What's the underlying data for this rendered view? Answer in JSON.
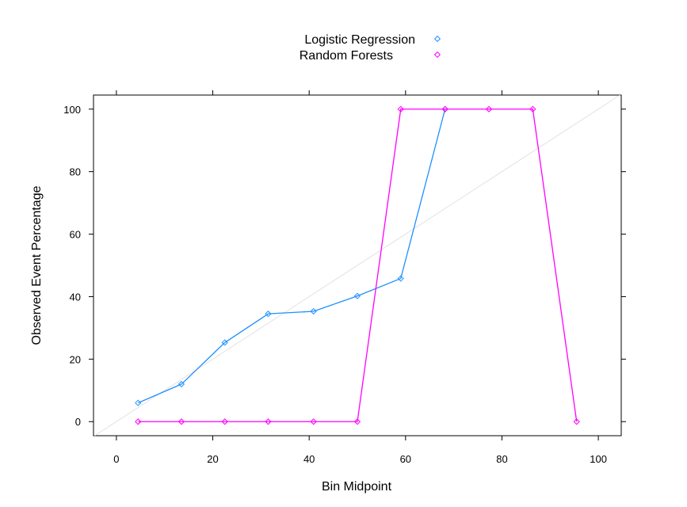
{
  "chart_data": {
    "type": "line",
    "xlabel": "Bin Midpoint",
    "ylabel": "Observed Event Percentage",
    "xlim": [
      -4.75,
      104.75
    ],
    "ylim": [
      -4.5,
      104.5
    ],
    "x_ticks": [
      0,
      20,
      40,
      60,
      80,
      100
    ],
    "y_ticks": [
      0,
      20,
      40,
      60,
      80,
      100
    ],
    "x_tick_labels": [
      "0",
      "20",
      "40",
      "60",
      "80",
      "100"
    ],
    "y_tick_labels": [
      "0",
      "20",
      "40",
      "60",
      "80",
      "100"
    ],
    "reference_line": {
      "from": [
        0,
        0
      ],
      "to": [
        100,
        100
      ],
      "color": "#e3e3e3"
    },
    "legend_position": "top-center",
    "grid": false,
    "series": [
      {
        "name": "Logistic Regression",
        "color": "#1e90ff",
        "marker": "open-diamond",
        "x": [
          4.5,
          13.5,
          22.5,
          31.5,
          40.9,
          50.0,
          59.0,
          68.2
        ],
        "y": [
          6.0,
          12.0,
          25.3,
          34.5,
          35.3,
          40.2,
          45.8,
          100.0
        ]
      },
      {
        "name": "Random Forests",
        "color": "#ff00ff",
        "marker": "open-diamond",
        "x": [
          4.5,
          13.5,
          22.5,
          31.5,
          40.9,
          50.0,
          59.0,
          68.2,
          77.3,
          86.4,
          95.5
        ],
        "y": [
          0,
          0,
          0,
          0,
          0,
          0,
          100,
          100,
          100,
          100,
          0
        ]
      }
    ]
  }
}
